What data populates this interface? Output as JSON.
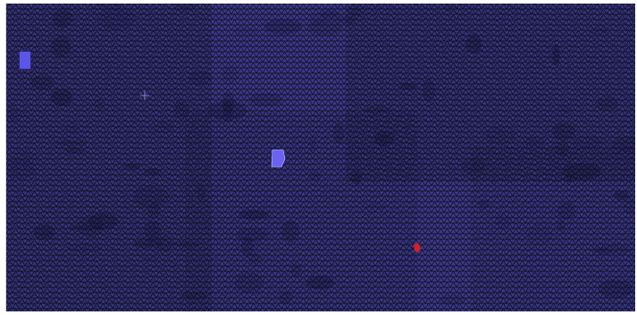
{
  "viewport": {
    "mesh_fill": "#3b3889",
    "mesh_edge": "#0b0b16",
    "patch_colors": {
      "highlight": "#6a62f2",
      "marker": "#d0202a",
      "crosshair": "#7a84d8"
    }
  },
  "legend": {
    "swatch_color": "#5b56e8",
    "label": ""
  },
  "title_text": "",
  "icons": {
    "crosshair": "crosshair-icon",
    "selected_cell": "highlighted-cell",
    "marker": "red-marker"
  }
}
